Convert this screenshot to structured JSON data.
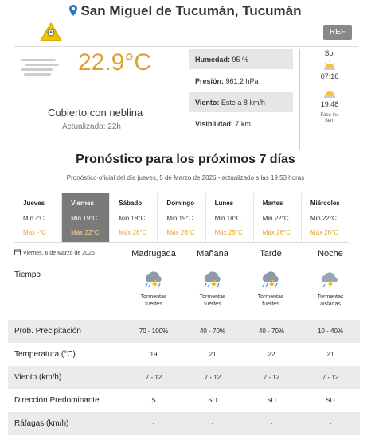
{
  "header": {
    "location": "San Miguel de Tucumán, Tucumán",
    "ref_label": "REF"
  },
  "current": {
    "temperature": "22.9°C",
    "condition": "Cubierto con neblina",
    "updated": "Actualizado: 22h",
    "stats": [
      {
        "label": "Humedad:",
        "value": " 95 %"
      },
      {
        "label": "Presión:",
        "value": " 961.2 hPa"
      },
      {
        "label": "Viento:",
        "value": " Este a 8 km/h"
      },
      {
        "label": "Visibilidad:",
        "value": " 7 km"
      }
    ],
    "sun": {
      "title": "Sol",
      "sunrise": "07:16",
      "sunset": "19:48",
      "moon_line1": "Fase lna",
      "moon_line2": "Sem"
    }
  },
  "forecast": {
    "title": "Pronóstico para los próximos 7 días",
    "subtitle": "Pronóstico oficial del día jueves, 5 de Marzo de 2026 - actualizado s las 19:53 horas",
    "days": [
      {
        "name": "Jueves",
        "min": "Min -°C",
        "max": "Max -°C"
      },
      {
        "name": "Viernes",
        "min": "Min 19°C",
        "max": "Máx 22°C"
      },
      {
        "name": "Sábado",
        "min": "Min 18°C",
        "max": "Máx 26°C"
      },
      {
        "name": "Domingo",
        "min": "Min 19°C",
        "max": "Máx 26°C"
      },
      {
        "name": "Lunes",
        "min": "Min 18°C",
        "max": "Máx 25°C"
      },
      {
        "name": "Martes",
        "min": "Min 22°C",
        "max": "Máx 26°C"
      },
      {
        "name": "Miércoles",
        "min": "Min 22°C",
        "max": "Máx 26°C"
      }
    ],
    "selected_date": "Viernes, 6 de Marzo de 2026",
    "periods": [
      "Madrugada",
      "Mañana",
      "Tarde",
      "Noche"
    ],
    "tiempo_label": "Tiempo",
    "weather": [
      {
        "line1": "Tormentas",
        "line2": "fuertes",
        "icon": "storm-cloud-icon"
      },
      {
        "line1": "Tormentas",
        "line2": "fuertes",
        "icon": "storm-cloud-icon"
      },
      {
        "line1": "Tormentas",
        "line2": "fuertes",
        "icon": "storm-cloud-icon"
      },
      {
        "line1": "Tormentas",
        "line2": "aisladas",
        "icon": "isolated-storm-icon"
      }
    ],
    "rows": [
      {
        "label": "Prob. Precipitación",
        "values": [
          "70 - 100%",
          "40 - 70%",
          "40 - 70%",
          "10 - 40%"
        ]
      },
      {
        "label": "Temperatura (°C)",
        "values": [
          "19",
          "21",
          "22",
          "21"
        ]
      },
      {
        "label": "Viento (km/h)",
        "values": [
          "7 - 12",
          "7 - 12",
          "7 - 12",
          "7 - 12"
        ]
      },
      {
        "label": "Dirección Predominante",
        "values": [
          "S",
          "SO",
          "SO",
          "SO"
        ]
      },
      {
        "label": "Ráfagas (km/h)",
        "values": [
          "-",
          "-",
          "-",
          "-"
        ]
      }
    ]
  },
  "colors": {
    "temperature": "#e0a22f",
    "selected_day_bg": "#7a7a7a",
    "row_stripe": "#ebebeb",
    "ref_button": "#888888",
    "pin": "#2a78c8"
  }
}
